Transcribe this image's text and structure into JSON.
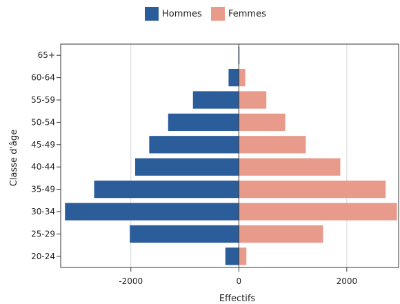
{
  "colors": {
    "hommes": "#2a5d9a",
    "femmes": "#e89b8b",
    "grid": "#d6d6d6",
    "axis": "#333333"
  },
  "legend": {
    "hommes": "Hommes",
    "femmes": "Femmes"
  },
  "chart_data": {
    "type": "bar",
    "orientation": "horizontal",
    "stacked_diverging": true,
    "categories": [
      "20-24",
      "25-29",
      "30-34",
      "35-49",
      "40-44",
      "45-49",
      "50-54",
      "55-59",
      "60-64",
      "65+"
    ],
    "series": [
      {
        "name": "Hommes",
        "values": [
          -250,
          -2020,
          -3220,
          -2680,
          -1920,
          -1660,
          -1310,
          -850,
          -190,
          -10
        ]
      },
      {
        "name": "Femmes",
        "values": [
          140,
          1560,
          2930,
          2720,
          1880,
          1240,
          860,
          510,
          120,
          15
        ]
      }
    ],
    "title": "",
    "xlabel": "Effectifs",
    "ylabel": "Classe d'âge",
    "xlim": [
      -3300,
      2960
    ],
    "xticks": [
      -2000,
      0,
      2000
    ],
    "xtick_labels": [
      "-2000",
      "0",
      "2000"
    ],
    "grid": "vertical",
    "legend_position": "top"
  }
}
